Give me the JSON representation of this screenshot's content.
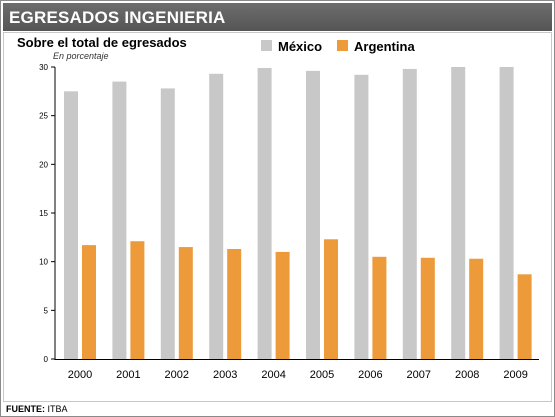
{
  "header": {
    "title": "EGRESADOS INGENIERIA"
  },
  "footer": {
    "label": "FUENTE:",
    "source": "ITBA"
  },
  "chart_data": {
    "type": "bar",
    "title": "Sobre el total de egresados",
    "subtitle": "En porcentaje",
    "xlabel": "",
    "ylabel": "",
    "ylim": [
      0,
      30
    ],
    "yticks": [
      "0",
      "5",
      "10",
      "15",
      "20",
      "25",
      "30"
    ],
    "grid": false,
    "legend_placement": "top-center",
    "categories": [
      "2000",
      "2001",
      "2002",
      "2003",
      "2004",
      "2005",
      "2006",
      "2007",
      "2008",
      "2009"
    ],
    "series": [
      {
        "name": "México",
        "color": "#c8c8c8",
        "values": [
          27.5,
          28.5,
          27.8,
          29.3,
          29.9,
          29.6,
          29.2,
          29.8,
          30.0,
          30.0
        ]
      },
      {
        "name": "Argentina",
        "color": "#ec9a3a",
        "values": [
          11.7,
          12.1,
          11.5,
          11.3,
          11.0,
          12.3,
          10.5,
          10.4,
          10.3,
          8.7
        ]
      }
    ]
  }
}
